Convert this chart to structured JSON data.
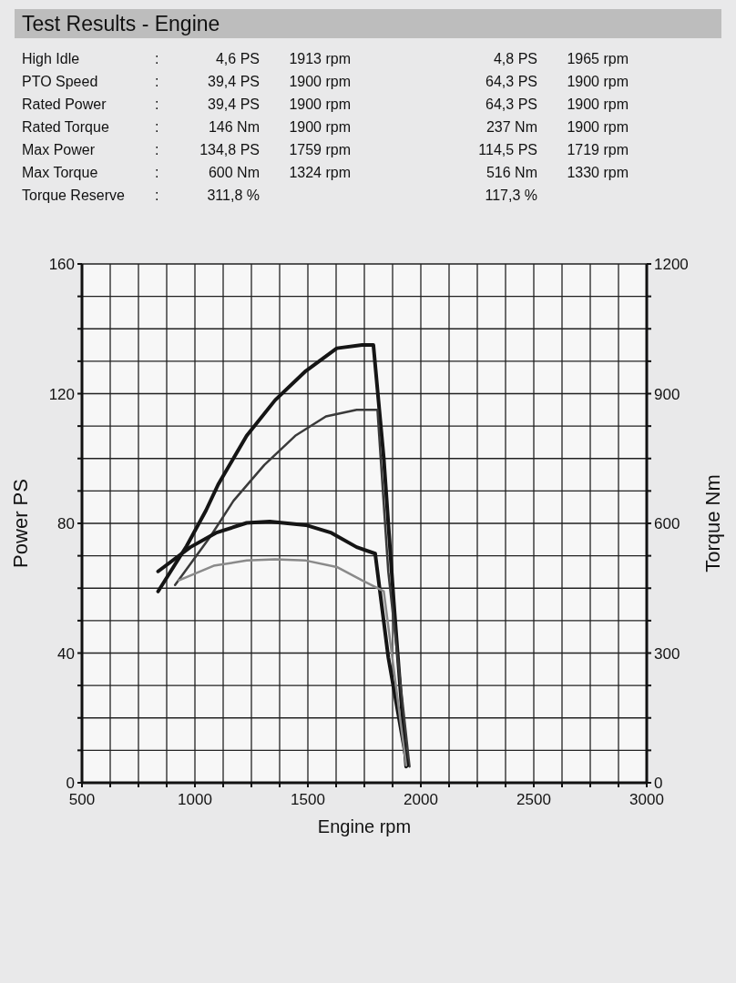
{
  "chart_data": {
    "type": "line",
    "title": "Test Results - Engine",
    "annotations": [
      "High Idle",
      ":",
      "4,6 PS",
      "1913 rpm",
      "4,8 PS",
      "1965 rpm",
      "PTO Speed",
      ":",
      "39,4 PS",
      "1900 rpm",
      "64,3 PS",
      "1900 rpm",
      "Rated Power",
      ":",
      "39,4 PS",
      "1900 rpm",
      "64,3 PS",
      "1900 rpm",
      "Rated Torque",
      ":",
      "146 Nm",
      "1900 rpm",
      "237 Nm",
      "1900 rpm",
      "Max Power",
      ":",
      "134,8 PS",
      "1759 rpm",
      "114,5 PS",
      "1719 rpm",
      "Max Torque",
      ":",
      "600 Nm",
      "1324 rpm",
      "516 Nm",
      "1330 rpm",
      "Torque Reserve",
      ":",
      "311,8 %",
      "117,3 %"
    ],
    "xlabel": "Engine rpm",
    "ylabel": "Power PS",
    "y2label": "Torque Nm",
    "xlim": [
      500,
      3000
    ],
    "xticks": [
      500,
      {
        "value": 625,
        "label": null
      },
      {
        "value": 750,
        "label": null
      },
      {
        "value": 875,
        "label": null
      },
      1000,
      {
        "value": 1125,
        "label": null
      },
      {
        "value": 1250,
        "label": null
      },
      {
        "value": 1375,
        "label": null
      },
      1500,
      {
        "value": 1625,
        "label": null
      },
      {
        "value": 1750,
        "label": null
      },
      {
        "value": 1875,
        "label": null
      },
      2000,
      {
        "value": 2125,
        "label": null
      },
      {
        "value": 2250,
        "label": null
      },
      {
        "value": 2375,
        "label": null
      },
      2500,
      {
        "value": 2625,
        "label": null
      },
      {
        "value": 2750,
        "label": null
      },
      {
        "value": 2875,
        "label": null
      },
      3000
    ],
    "ylim": [
      0,
      160
    ],
    "yticks": [
      0,
      {
        "value": 10,
        "label": null
      },
      {
        "value": 20,
        "label": null
      },
      {
        "value": 30,
        "label": null
      },
      40,
      {
        "value": 50,
        "label": null
      },
      {
        "value": 60,
        "label": null
      },
      {
        "value": 70,
        "label": null
      },
      80,
      {
        "value": 90,
        "label": null
      },
      {
        "value": 100,
        "label": null
      },
      {
        "value": 110,
        "label": null
      },
      120,
      {
        "value": 130,
        "label": null
      },
      {
        "value": 140,
        "label": null
      },
      {
        "value": 150,
        "label": null
      },
      160
    ],
    "y2lim": [
      0,
      1200
    ],
    "y2ticks": [
      0,
      {
        "value": 75,
        "label": null
      },
      {
        "value": 150,
        "label": null
      },
      {
        "value": 225,
        "label": null
      },
      300,
      {
        "value": 375,
        "label": null
      },
      {
        "value": 450,
        "label": null
      },
      {
        "value": 525,
        "label": null
      },
      600,
      {
        "value": 675,
        "label": null
      },
      {
        "value": 750,
        "label": null
      },
      {
        "value": 825,
        "label": null
      },
      900,
      {
        "value": 975,
        "label": null
      },
      {
        "value": 1050,
        "label": null
      },
      {
        "value": 1125,
        "label": null
      },
      1200
    ],
    "grid": true,
    "series": [
      {
        "color": "#151515",
        "x": [
          837,
          963,
          1049,
          1103,
          1229,
          1355,
          1491,
          1628,
          1740,
          1790,
          1836,
          1880,
          1935
        ],
        "values": [
          59,
          73,
          84,
          92,
          107,
          118,
          127,
          134,
          135,
          135,
          100,
          56,
          5
        ]
      },
      {
        "color": "#3a3a3a",
        "x": [
          912,
          1069,
          1171,
          1307,
          1444,
          1580,
          1716,
          1808,
          1856,
          1950
        ],
        "values": [
          61,
          76,
          87,
          98,
          107,
          113,
          115,
          115,
          65,
          5
        ]
      },
      {
        "color": "#151515",
        "axis": "y2",
        "x": [
          837,
          980,
          1093,
          1229,
          1331,
          1491,
          1604,
          1716,
          1798,
          1856,
          1940
        ],
        "values": [
          489,
          545,
          578,
          601,
          604,
          596,
          578,
          545,
          530,
          290,
          40
        ]
      },
      {
        "color": "#8a8a8a",
        "axis": "y2",
        "x": [
          929,
          1083,
          1229,
          1355,
          1491,
          1628,
          1740,
          1836,
          1935
        ],
        "values": [
          468,
          502,
          514,
          517,
          514,
          499,
          468,
          443,
          40
        ]
      }
    ]
  }
}
